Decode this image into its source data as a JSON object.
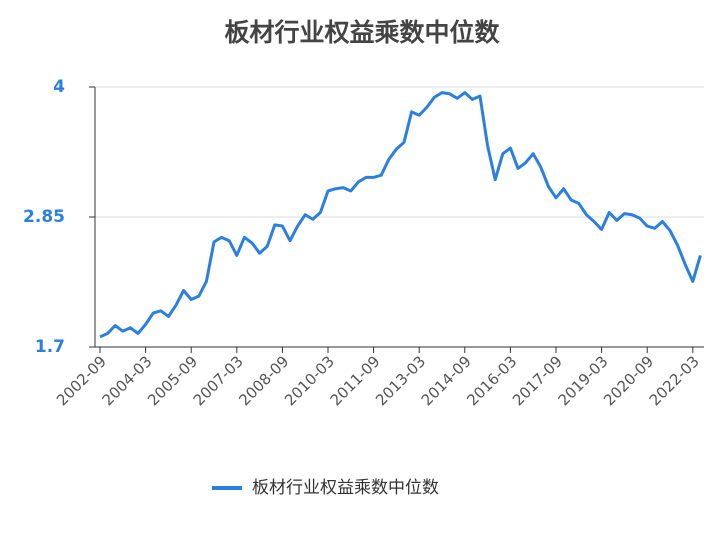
{
  "chart_data": {
    "type": "line",
    "title": "板材行业权益乘数中位数",
    "categories": [
      "2002-09",
      null,
      null,
      null,
      null,
      null,
      "2004-03",
      null,
      null,
      null,
      null,
      null,
      "2005-09",
      null,
      null,
      null,
      null,
      null,
      "2007-03",
      null,
      null,
      null,
      null,
      null,
      "2008-09",
      null,
      null,
      null,
      null,
      null,
      "2010-03",
      null,
      null,
      null,
      null,
      null,
      "2011-09",
      null,
      null,
      null,
      null,
      null,
      "2013-03",
      null,
      null,
      null,
      null,
      null,
      "2014-09",
      null,
      null,
      null,
      null,
      null,
      "2016-03",
      null,
      null,
      null,
      null,
      null,
      "2017-09",
      null,
      null,
      null,
      null,
      null,
      "2019-03",
      null,
      null,
      null,
      null,
      null,
      "2020-09",
      null,
      null,
      null,
      null,
      null,
      "2022-03",
      null
    ],
    "series": [
      {
        "name": "板材行业权益乘数中位数",
        "color": "#2b7fe0",
        "values": [
          1.79,
          1.82,
          1.89,
          1.84,
          1.87,
          1.82,
          1.9,
          2.0,
          2.02,
          1.97,
          2.07,
          2.2,
          2.12,
          2.15,
          2.28,
          2.63,
          2.67,
          2.64,
          2.51,
          2.67,
          2.62,
          2.53,
          2.59,
          2.78,
          2.77,
          2.64,
          2.77,
          2.87,
          2.83,
          2.89,
          3.08,
          3.1,
          3.11,
          3.08,
          3.16,
          3.2,
          3.2,
          3.22,
          3.36,
          3.45,
          3.51,
          3.78,
          3.75,
          3.82,
          3.91,
          3.95,
          3.94,
          3.9,
          3.95,
          3.89,
          3.92,
          3.48,
          3.18,
          3.41,
          3.46,
          3.28,
          3.33,
          3.41,
          3.29,
          3.12,
          3.02,
          3.1,
          3.0,
          2.97,
          2.87,
          2.81,
          2.74,
          2.89,
          2.82,
          2.88,
          2.87,
          2.84,
          2.77,
          2.75,
          2.81,
          2.73,
          2.6,
          2.43,
          2.28,
          2.51
        ]
      }
    ],
    "ylim": [
      1.7,
      4
    ],
    "yticks": [
      1.7,
      2.85,
      4
    ],
    "grid": true
  }
}
